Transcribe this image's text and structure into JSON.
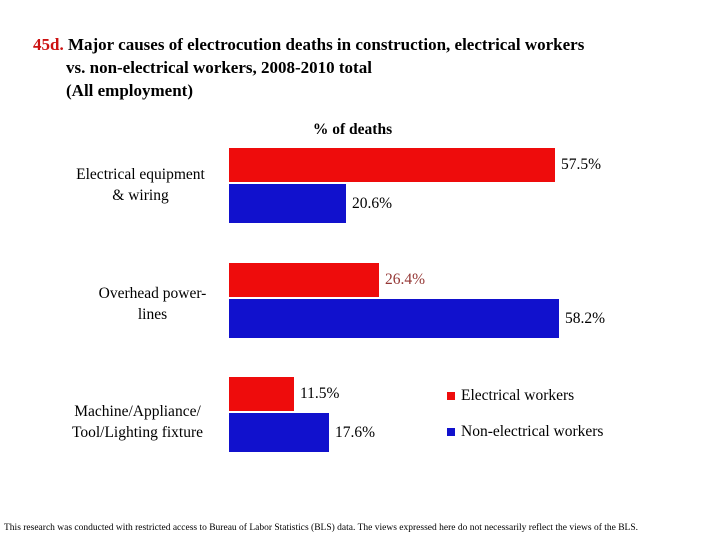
{
  "title": {
    "number": "45d.",
    "number_color": "#cc1111",
    "line1": "Major causes of electrocution deaths in construction, electrical workers",
    "line2": "vs. non-electrical workers, 2008-2010 total",
    "line3": "(All employment)"
  },
  "chart_data": {
    "type": "bar",
    "orientation": "horizontal",
    "axis_label": "% of deaths",
    "categories": [
      "Electrical equipment & wiring",
      "Overhead power-lines",
      "Machine/Appliance/ Tool/Lighting fixture"
    ],
    "series": [
      {
        "name": "Electrical workers",
        "color": "#ee0c0c",
        "values": [
          57.5,
          26.4,
          11.5
        ]
      },
      {
        "name": "Non-electrical workers",
        "color": "#1111cd",
        "values": [
          20.6,
          58.2,
          17.6
        ]
      }
    ],
    "value_suffix": "%",
    "xlim": [
      0,
      63
    ],
    "grid": false,
    "legend_position": "bottom-right"
  },
  "groups": [
    {
      "label_line1": "Electrical equipment",
      "label_line2": "& wiring",
      "electrical": {
        "value": 57.5,
        "label": "57.5%",
        "label_color": "#000000"
      },
      "non_electrical": {
        "value": 20.6,
        "label": "20.6%",
        "label_color": "#000000"
      }
    },
    {
      "label_line1": "Overhead power-",
      "label_line2": "lines",
      "electrical": {
        "value": 26.4,
        "label": "26.4%",
        "label_color": "#943634"
      },
      "non_electrical": {
        "value": 58.2,
        "label": "58.2%",
        "label_color": "#000000"
      }
    },
    {
      "label_line1": "Machine/Appliance/",
      "label_line2": "Tool/Lighting fixture",
      "electrical": {
        "value": 11.5,
        "label": "11.5%",
        "label_color": "#000000"
      },
      "non_electrical": {
        "value": 17.6,
        "label": "17.6%",
        "label_color": "#000000"
      }
    }
  ],
  "legend": {
    "items": [
      {
        "label": "Electrical workers",
        "color": "#ee0c0c"
      },
      {
        "label": "Non-electrical workers",
        "color": "#1111cd"
      }
    ]
  },
  "footer": "This research was conducted with restricted access to Bureau of Labor Statistics (BLS) data.  The views expressed here do not necessarily reflect the views of the BLS."
}
